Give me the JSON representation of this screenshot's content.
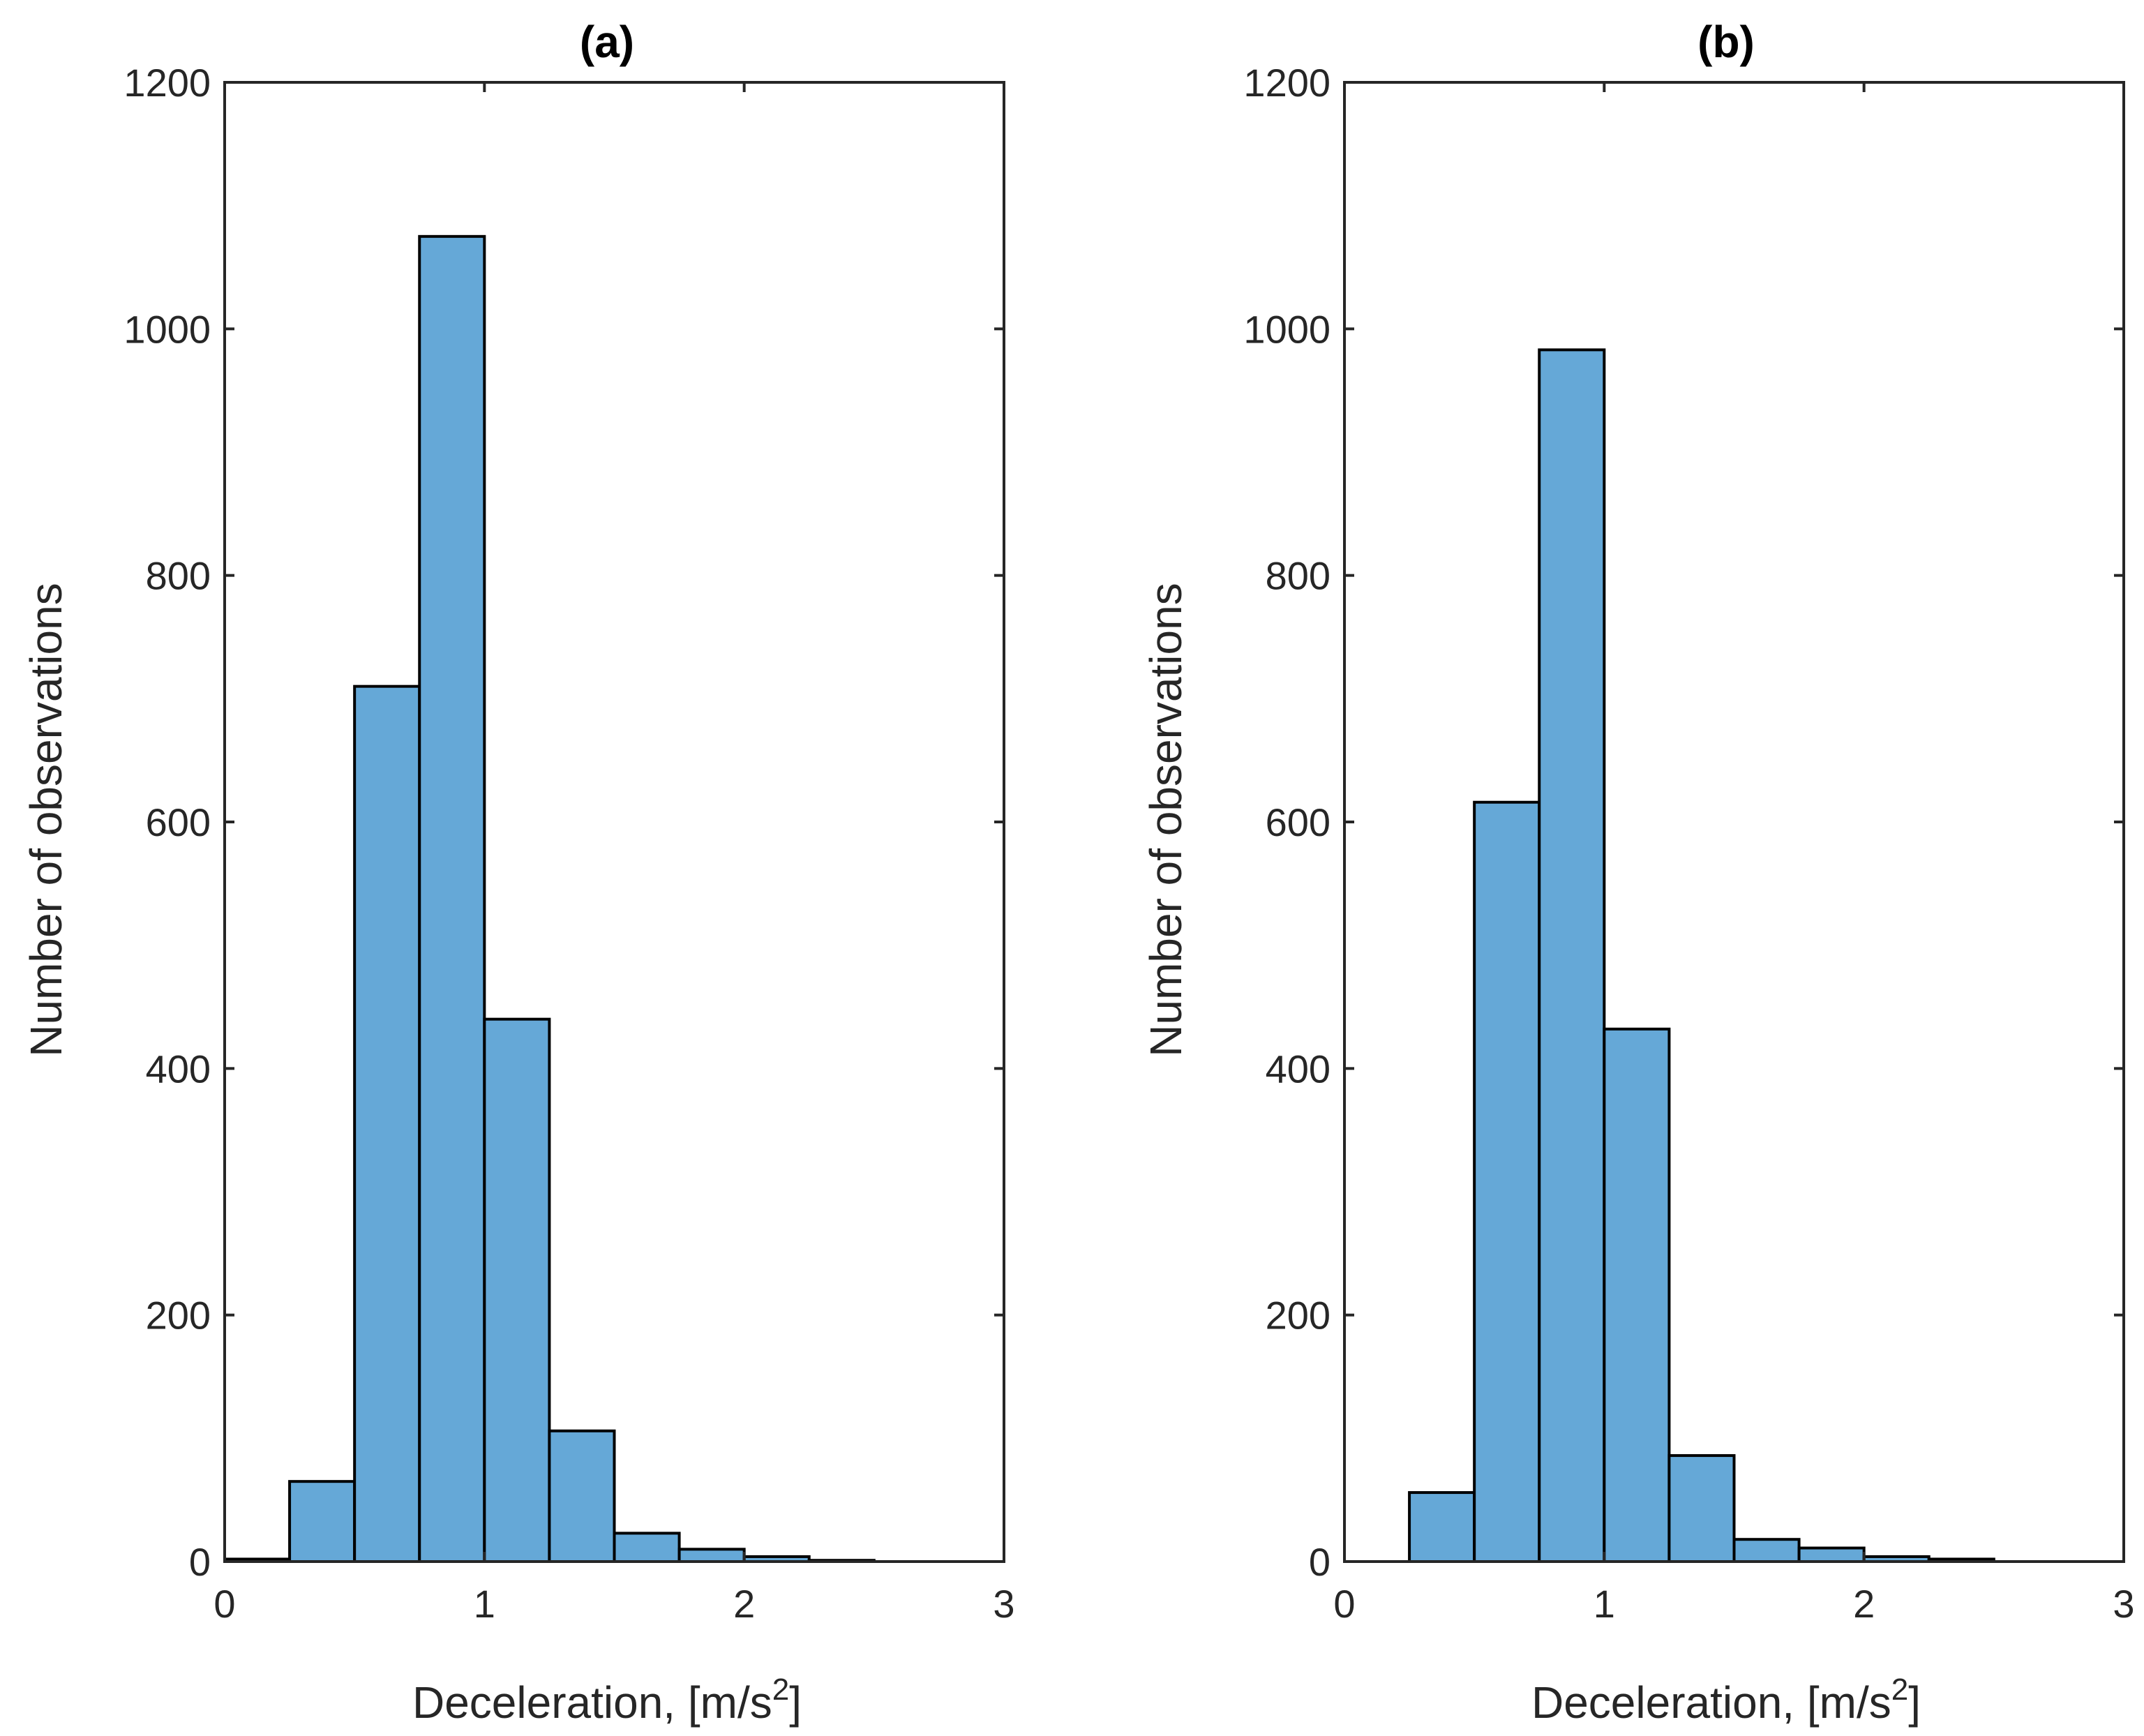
{
  "chart_data": [
    {
      "type": "bar",
      "title": "(a)",
      "xlabel": "Deceleration, [m/s",
      "xlabel_sup": "2",
      "xlabel_close": "]",
      "ylabel": "Number of observations",
      "xlim": [
        0,
        3
      ],
      "ylim": [
        0,
        1200
      ],
      "xticks": [
        "0",
        "1",
        "2",
        "3"
      ],
      "yticks": [
        "0",
        "200",
        "400",
        "600",
        "800",
        "1000",
        "1200"
      ],
      "bins": [
        {
          "x0": 0.0,
          "x1": 0.25,
          "value": 2
        },
        {
          "x0": 0.25,
          "x1": 0.5,
          "value": 65
        },
        {
          "x0": 0.5,
          "x1": 0.75,
          "value": 710
        },
        {
          "x0": 0.75,
          "x1": 1.0,
          "value": 1075
        },
        {
          "x0": 1.0,
          "x1": 1.25,
          "value": 440
        },
        {
          "x0": 1.25,
          "x1": 1.5,
          "value": 106
        },
        {
          "x0": 1.5,
          "x1": 1.75,
          "value": 23
        },
        {
          "x0": 1.75,
          "x1": 2.0,
          "value": 10
        },
        {
          "x0": 2.0,
          "x1": 2.25,
          "value": 4
        },
        {
          "x0": 2.25,
          "x1": 2.5,
          "value": 1
        }
      ],
      "bar_color": "#65a8d7",
      "grid": false
    },
    {
      "type": "bar",
      "title": "(b)",
      "xlabel": "Deceleration, [m/s",
      "xlabel_sup": "2",
      "xlabel_close": "]",
      "ylabel": "Number of observations",
      "xlim": [
        0,
        3
      ],
      "ylim": [
        0,
        1200
      ],
      "xticks": [
        "0",
        "1",
        "2",
        "3"
      ],
      "yticks": [
        "0",
        "200",
        "400",
        "600",
        "800",
        "1000",
        "1200"
      ],
      "bins": [
        {
          "x0": 0.25,
          "x1": 0.5,
          "value": 56
        },
        {
          "x0": 0.5,
          "x1": 0.75,
          "value": 616
        },
        {
          "x0": 0.75,
          "x1": 1.0,
          "value": 983
        },
        {
          "x0": 1.0,
          "x1": 1.25,
          "value": 432
        },
        {
          "x0": 1.25,
          "x1": 1.5,
          "value": 86
        },
        {
          "x0": 1.5,
          "x1": 1.75,
          "value": 18
        },
        {
          "x0": 1.75,
          "x1": 2.0,
          "value": 11
        },
        {
          "x0": 2.0,
          "x1": 2.25,
          "value": 4
        },
        {
          "x0": 2.25,
          "x1": 2.5,
          "value": 2
        }
      ],
      "bar_color": "#65a8d7",
      "grid": false
    }
  ]
}
